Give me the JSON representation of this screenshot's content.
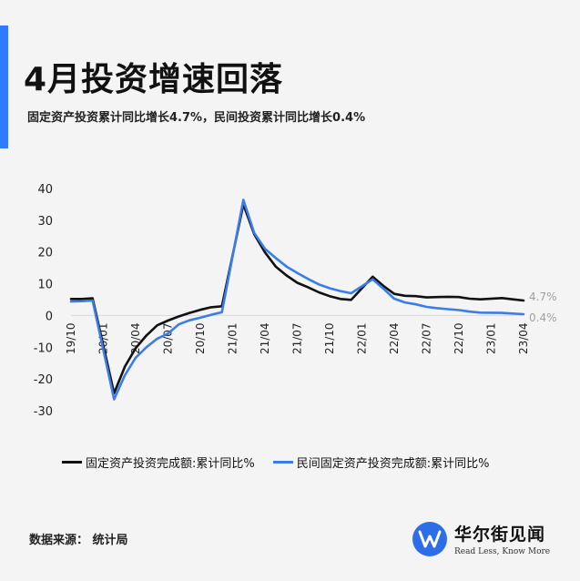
{
  "header": {
    "title": "4月投资增速回落",
    "subtitle": "固定资产投资累计同比增长4.7%，民间投资累计同比增长0.4%"
  },
  "legend": {
    "items": [
      {
        "label": "固定资产投资完成额:累计同比%",
        "color": "#111111"
      },
      {
        "label": "民间固定资产投资完成额:累计同比%",
        "color": "#3a7de8"
      }
    ]
  },
  "footer": {
    "source": "数据来源： 统计局",
    "brand_name": "华尔街见闻",
    "brand_tagline": "Read Less, Know More"
  },
  "chart_data": {
    "type": "line",
    "title": "4月投资增速回落",
    "subtitle": "固定资产投资累计同比增长4.7%，民间投资累计同比增长0.4%",
    "ylim": [
      -30,
      40
    ],
    "yticks": [
      40,
      30,
      20,
      10,
      0,
      -10,
      -20,
      -30
    ],
    "xlim": [
      "2019-10",
      "2023-04"
    ],
    "xticks": [
      "19/10",
      "20/01",
      "20/04",
      "20/07",
      "20/10",
      "21/01",
      "21/04",
      "21/07",
      "21/10",
      "22/01",
      "22/04",
      "22/07",
      "22/10",
      "23/01",
      "23/04"
    ],
    "grid": false,
    "legend_position": "bottom",
    "end_labels": [
      "4.7%",
      "0.4%"
    ],
    "series": [
      {
        "name": "固定资产投资完成额:累计同比%",
        "color": "#111111",
        "points": [
          [
            "2019-10",
            5.2
          ],
          [
            "2019-11",
            5.2
          ],
          [
            "2019-12",
            5.4
          ],
          [
            "2020-02",
            -24.5
          ],
          [
            "2020-03",
            -16.1
          ],
          [
            "2020-04",
            -10.3
          ],
          [
            "2020-05",
            -6.3
          ],
          [
            "2020-06",
            -3.1
          ],
          [
            "2020-07",
            -1.6
          ],
          [
            "2020-08",
            -0.3
          ],
          [
            "2020-09",
            0.8
          ],
          [
            "2020-10",
            1.8
          ],
          [
            "2020-11",
            2.6
          ],
          [
            "2020-12",
            2.9
          ],
          [
            "2021-02",
            35.0
          ],
          [
            "2021-03",
            25.6
          ],
          [
            "2021-04",
            19.9
          ],
          [
            "2021-05",
            15.4
          ],
          [
            "2021-06",
            12.6
          ],
          [
            "2021-07",
            10.3
          ],
          [
            "2021-08",
            8.9
          ],
          [
            "2021-09",
            7.3
          ],
          [
            "2021-10",
            6.1
          ],
          [
            "2021-11",
            5.2
          ],
          [
            "2021-12",
            4.9
          ],
          [
            "2022-02",
            12.2
          ],
          [
            "2022-03",
            9.3
          ],
          [
            "2022-04",
            6.8
          ],
          [
            "2022-05",
            6.2
          ],
          [
            "2022-06",
            6.1
          ],
          [
            "2022-07",
            5.7
          ],
          [
            "2022-08",
            5.8
          ],
          [
            "2022-09",
            5.9
          ],
          [
            "2022-10",
            5.8
          ],
          [
            "2022-11",
            5.3
          ],
          [
            "2022-12",
            5.1
          ],
          [
            "2023-02",
            5.5
          ],
          [
            "2023-03",
            5.1
          ],
          [
            "2023-04",
            4.7
          ]
        ]
      },
      {
        "name": "民间固定资产投资完成额:累计同比%",
        "color": "#3a7de8",
        "points": [
          [
            "2019-10",
            4.4
          ],
          [
            "2019-11",
            4.5
          ],
          [
            "2019-12",
            4.7
          ],
          [
            "2020-02",
            -26.4
          ],
          [
            "2020-03",
            -18.8
          ],
          [
            "2020-04",
            -13.3
          ],
          [
            "2020-05",
            -10.0
          ],
          [
            "2020-06",
            -7.3
          ],
          [
            "2020-07",
            -5.7
          ],
          [
            "2020-08",
            -2.8
          ],
          [
            "2020-09",
            -1.5
          ],
          [
            "2020-10",
            -0.7
          ],
          [
            "2020-11",
            0.2
          ],
          [
            "2020-12",
            1.0
          ],
          [
            "2021-02",
            36.4
          ],
          [
            "2021-03",
            26.0
          ],
          [
            "2021-04",
            21.0
          ],
          [
            "2021-05",
            18.1
          ],
          [
            "2021-06",
            15.4
          ],
          [
            "2021-07",
            13.4
          ],
          [
            "2021-08",
            11.5
          ],
          [
            "2021-09",
            9.8
          ],
          [
            "2021-10",
            8.6
          ],
          [
            "2021-11",
            7.7
          ],
          [
            "2021-12",
            7.0
          ],
          [
            "2022-02",
            11.4
          ],
          [
            "2022-03",
            8.4
          ],
          [
            "2022-04",
            5.3
          ],
          [
            "2022-05",
            4.1
          ],
          [
            "2022-06",
            3.5
          ],
          [
            "2022-07",
            2.7
          ],
          [
            "2022-08",
            2.3
          ],
          [
            "2022-09",
            2.0
          ],
          [
            "2022-10",
            1.7
          ],
          [
            "2022-11",
            1.2
          ],
          [
            "2022-12",
            0.9
          ],
          [
            "2023-02",
            0.8
          ],
          [
            "2023-03",
            0.6
          ],
          [
            "2023-04",
            0.4
          ]
        ]
      }
    ]
  }
}
